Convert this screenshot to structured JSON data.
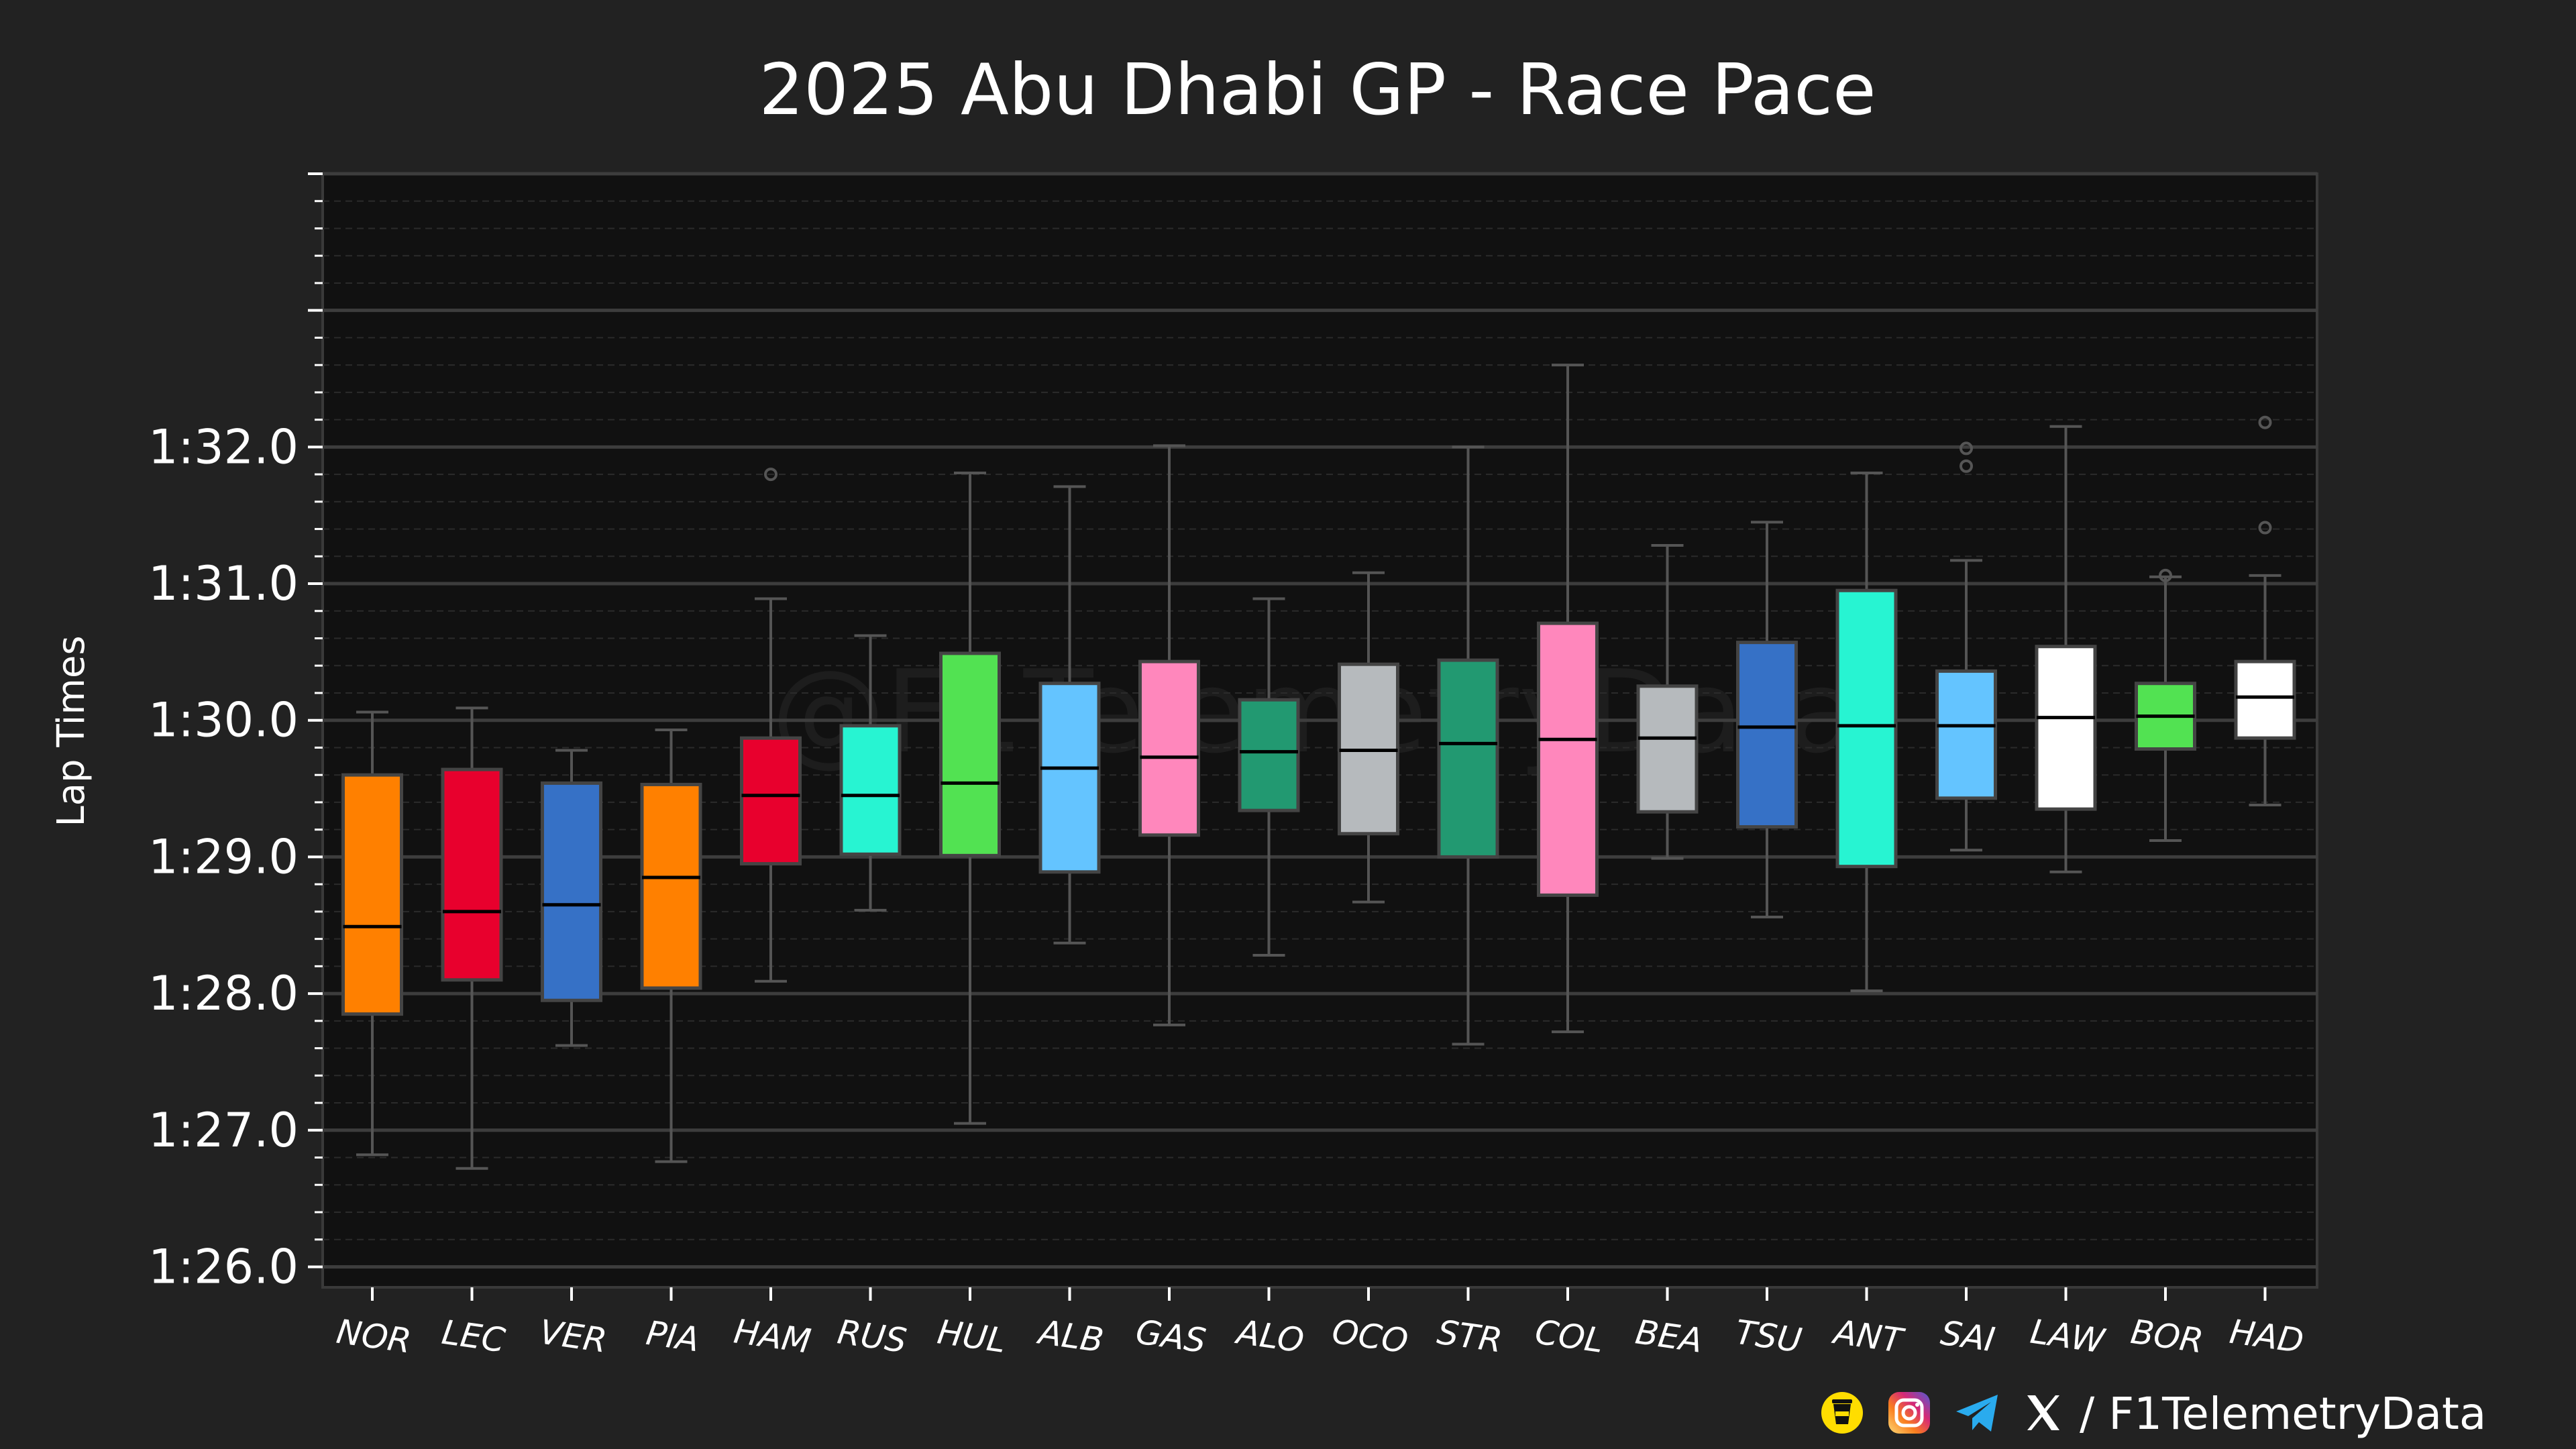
{
  "chart_data": {
    "type": "box",
    "title": "2025 Abu Dhabi GP - Race Pace",
    "ylabel": "Lap Times",
    "xlabel": "",
    "ylim": [
      85.85,
      94.0
    ],
    "y_ticks": [
      86,
      87,
      88,
      89,
      90,
      91,
      92
    ],
    "y_tick_labels": [
      "1:26.0",
      "1:27.0",
      "1:28.0",
      "1:29.0",
      "1:30.0",
      "1:31.0",
      "1:32.0"
    ],
    "grid": true,
    "watermark": "@F1TelemetryData",
    "boxes": [
      {
        "driver": "NOR",
        "color": "#FF8000",
        "whisker_low": 86.82,
        "q1": 87.85,
        "median": 88.49,
        "q3": 89.6,
        "whisker_high": 90.06,
        "outliers": []
      },
      {
        "driver": "LEC",
        "color": "#E8002D",
        "whisker_low": 86.72,
        "q1": 88.1,
        "median": 88.6,
        "q3": 89.64,
        "whisker_high": 90.09,
        "outliers": []
      },
      {
        "driver": "VER",
        "color": "#3671C6",
        "whisker_low": 87.62,
        "q1": 87.95,
        "median": 88.65,
        "q3": 89.54,
        "whisker_high": 89.78,
        "outliers": []
      },
      {
        "driver": "PIA",
        "color": "#FF8000",
        "whisker_low": 86.77,
        "q1": 88.04,
        "median": 88.85,
        "q3": 89.53,
        "whisker_high": 89.93,
        "outliers": []
      },
      {
        "driver": "HAM",
        "color": "#E8002D",
        "whisker_low": 88.09,
        "q1": 88.95,
        "median": 89.45,
        "q3": 89.87,
        "whisker_high": 90.89,
        "outliers": [
          91.8
        ]
      },
      {
        "driver": "RUS",
        "color": "#27F4D2",
        "whisker_low": 88.61,
        "q1": 89.02,
        "median": 89.45,
        "q3": 89.96,
        "whisker_high": 90.62,
        "outliers": []
      },
      {
        "driver": "HUL",
        "color": "#52E252",
        "whisker_low": 87.05,
        "q1": 89.01,
        "median": 89.54,
        "q3": 90.49,
        "whisker_high": 91.81,
        "outliers": []
      },
      {
        "driver": "ALB",
        "color": "#64C4FF",
        "whisker_low": 88.37,
        "q1": 88.89,
        "median": 89.65,
        "q3": 90.27,
        "whisker_high": 91.71,
        "outliers": []
      },
      {
        "driver": "GAS",
        "color": "#FF87BC",
        "whisker_low": 87.77,
        "q1": 89.16,
        "median": 89.73,
        "q3": 90.43,
        "whisker_high": 92.01,
        "outliers": []
      },
      {
        "driver": "ALO",
        "color": "#229971",
        "whisker_low": 88.28,
        "q1": 89.34,
        "median": 89.77,
        "q3": 90.15,
        "whisker_high": 90.89,
        "outliers": []
      },
      {
        "driver": "OCO",
        "color": "#B6BABD",
        "whisker_low": 88.67,
        "q1": 89.17,
        "median": 89.78,
        "q3": 90.41,
        "whisker_high": 91.08,
        "outliers": []
      },
      {
        "driver": "STR",
        "color": "#229971",
        "whisker_low": 87.63,
        "q1": 89.0,
        "median": 89.83,
        "q3": 90.44,
        "whisker_high": 92.0,
        "outliers": []
      },
      {
        "driver": "COL",
        "color": "#FF87BC",
        "whisker_low": 87.72,
        "q1": 88.72,
        "median": 89.86,
        "q3": 90.71,
        "whisker_high": 92.6,
        "outliers": []
      },
      {
        "driver": "BEA",
        "color": "#B6BABD",
        "whisker_low": 88.99,
        "q1": 89.33,
        "median": 89.87,
        "q3": 90.25,
        "whisker_high": 91.28,
        "outliers": []
      },
      {
        "driver": "TSU",
        "color": "#3671C6",
        "whisker_low": 88.56,
        "q1": 89.22,
        "median": 89.95,
        "q3": 90.57,
        "whisker_high": 91.45,
        "outliers": []
      },
      {
        "driver": "ANT",
        "color": "#27F4D2",
        "whisker_low": 88.02,
        "q1": 88.93,
        "median": 89.96,
        "q3": 90.95,
        "whisker_high": 91.81,
        "outliers": []
      },
      {
        "driver": "SAI",
        "color": "#64C4FF",
        "whisker_low": 89.05,
        "q1": 89.43,
        "median": 89.96,
        "q3": 90.36,
        "whisker_high": 91.17,
        "outliers": [
          91.86,
          91.99
        ]
      },
      {
        "driver": "LAW",
        "color": "#FFFFFF",
        "whisker_low": 88.89,
        "q1": 89.35,
        "median": 90.02,
        "q3": 90.54,
        "whisker_high": 92.15,
        "outliers": []
      },
      {
        "driver": "BOR",
        "color": "#52E252",
        "whisker_low": 89.12,
        "q1": 89.79,
        "median": 90.03,
        "q3": 90.27,
        "whisker_high": 91.05,
        "outliers": [
          91.06
        ]
      },
      {
        "driver": "HAD",
        "color": "#FFFFFF",
        "whisker_low": 89.38,
        "q1": 89.87,
        "median": 90.17,
        "q3": 90.43,
        "whisker_high": 91.06,
        "outliers": [
          91.41,
          92.18
        ]
      }
    ]
  },
  "footer": {
    "handle": "/ F1TelemetryData",
    "icons": [
      "coffee-cup-icon",
      "instagram-icon",
      "telegram-icon",
      "x-logo-icon"
    ]
  }
}
